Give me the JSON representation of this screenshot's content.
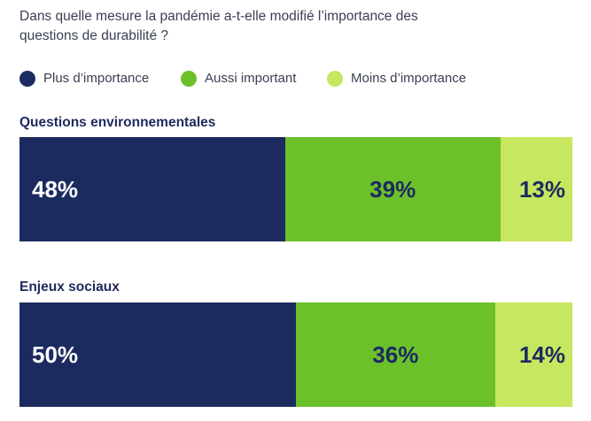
{
  "title": "Dans quelle mesure la pandémie a-t-elle modifié l’importance des questions de durabilité ?",
  "legend": [
    {
      "label": "Plus d’importance",
      "color": "#1c2b5f"
    },
    {
      "label": "Aussi important",
      "color": "#6cc12b"
    },
    {
      "label": "Moins d’importance",
      "color": "#c8e760"
    }
  ],
  "chart_data": {
    "type": "bar",
    "orientation": "horizontal-stacked-100",
    "title": "Dans quelle mesure la pandémie a-t-elle modifié l’importance des questions de durabilité ?",
    "categories": [
      "Questions environnementales",
      "Enjeux sociaux"
    ],
    "series": [
      {
        "name": "Plus d’importance",
        "color": "#1c2b5f",
        "label_color": "#ffffff",
        "values": [
          48,
          50
        ],
        "labels": [
          "48%",
          "50%"
        ]
      },
      {
        "name": "Aussi important",
        "color": "#6cc12b",
        "label_color": "#1c2b5f",
        "values": [
          39,
          36
        ],
        "labels": [
          "39%",
          "36%"
        ]
      },
      {
        "name": "Moins d’importance",
        "color": "#c8e760",
        "label_color": "#1c2b5f",
        "values": [
          13,
          14
        ],
        "labels": [
          "13%",
          "14%"
        ]
      }
    ],
    "legend_position": "top-left",
    "grid": false
  }
}
